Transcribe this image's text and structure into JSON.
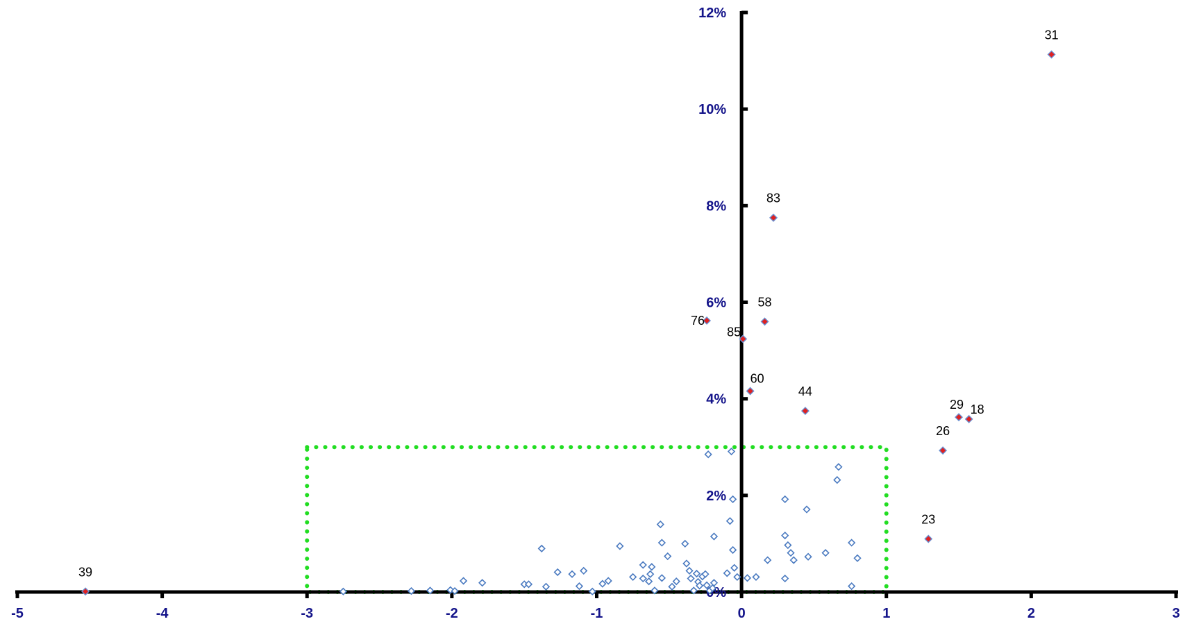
{
  "chart_data": {
    "type": "scatter",
    "title": "",
    "xlabel": "",
    "ylabel": "",
    "xlim": [
      -5,
      3
    ],
    "ylim": [
      0,
      0.12
    ],
    "grid": false,
    "legend": "none",
    "x_ticks": [
      {
        "value": -5,
        "label": "-5"
      },
      {
        "value": -4,
        "label": "-4"
      },
      {
        "value": -3,
        "label": "-3"
      },
      {
        "value": -2,
        "label": "-2"
      },
      {
        "value": -1,
        "label": "-1"
      },
      {
        "value": 0,
        "label": "0"
      },
      {
        "value": 1,
        "label": "1"
      },
      {
        "value": 2,
        "label": "2"
      },
      {
        "value": 3,
        "label": "3"
      }
    ],
    "y_ticks": [
      {
        "value": 0,
        "label": "0%"
      },
      {
        "value": 0.02,
        "label": "2%"
      },
      {
        "value": 0.04,
        "label": "4%"
      },
      {
        "value": 0.06,
        "label": "6%"
      },
      {
        "value": 0.08,
        "label": "8%"
      },
      {
        "value": 0.1,
        "label": "10%"
      },
      {
        "value": 0.12,
        "label": "12%"
      }
    ],
    "highlight_box": {
      "x": [
        -3,
        1
      ],
      "y": [
        0,
        0.03
      ],
      "color": "#22dd22"
    },
    "colors": {
      "axis": "#000000",
      "tick_text": "#14148a",
      "labeled_fill": "#e02020",
      "labeled_stroke": "#6a8fd0",
      "unlabeled_stroke": "#4a7ac0"
    },
    "labeled_points": [
      {
        "label": "31",
        "x": 2.14,
        "y": 0.1113
      },
      {
        "label": "83",
        "x": 0.22,
        "y": 0.0775
      },
      {
        "label": "58",
        "x": 0.16,
        "y": 0.056
      },
      {
        "label": "76",
        "x": -0.24,
        "y": 0.0562
      },
      {
        "label": "85",
        "x": 0.01,
        "y": 0.0524
      },
      {
        "label": "60",
        "x": 0.06,
        "y": 0.0416
      },
      {
        "label": "44",
        "x": 0.44,
        "y": 0.0375
      },
      {
        "label": "29",
        "x": 1.5,
        "y": 0.0362
      },
      {
        "label": "18",
        "x": 1.57,
        "y": 0.0358
      },
      {
        "label": "26",
        "x": 1.39,
        "y": 0.0293
      },
      {
        "label": "23",
        "x": 1.29,
        "y": 0.011
      },
      {
        "label": "39",
        "x": -4.53,
        "y": 0.0001
      }
    ],
    "points": [
      {
        "x": -2.75,
        "y": 0.0001
      },
      {
        "x": -2.28,
        "y": 0.0002
      },
      {
        "x": -2.15,
        "y": 0.0003
      },
      {
        "x": -2.01,
        "y": 0.0004
      },
      {
        "x": -1.98,
        "y": 0.0002
      },
      {
        "x": -1.92,
        "y": 0.0023
      },
      {
        "x": -1.79,
        "y": 0.0019
      },
      {
        "x": -1.5,
        "y": 0.0016
      },
      {
        "x": -1.47,
        "y": 0.0016
      },
      {
        "x": -1.38,
        "y": 0.009
      },
      {
        "x": -1.35,
        "y": 0.0011
      },
      {
        "x": -1.27,
        "y": 0.0041
      },
      {
        "x": -1.17,
        "y": 0.0037
      },
      {
        "x": -1.12,
        "y": 0.0012
      },
      {
        "x": -1.09,
        "y": 0.0044
      },
      {
        "x": -1.03,
        "y": 0.0001
      },
      {
        "x": -0.96,
        "y": 0.0017
      },
      {
        "x": -0.92,
        "y": 0.0023
      },
      {
        "x": -0.84,
        "y": 0.0095
      },
      {
        "x": -0.75,
        "y": 0.0031
      },
      {
        "x": -0.68,
        "y": 0.0056
      },
      {
        "x": -0.68,
        "y": 0.0028
      },
      {
        "x": -0.64,
        "y": 0.0022
      },
      {
        "x": -0.63,
        "y": 0.0037
      },
      {
        "x": -0.62,
        "y": 0.0052
      },
      {
        "x": -0.6,
        "y": 0.0003
      },
      {
        "x": -0.56,
        "y": 0.014
      },
      {
        "x": -0.55,
        "y": 0.0102
      },
      {
        "x": -0.55,
        "y": 0.0029
      },
      {
        "x": -0.51,
        "y": 0.0074
      },
      {
        "x": -0.48,
        "y": 0.0011
      },
      {
        "x": -0.45,
        "y": 0.0022
      },
      {
        "x": -0.39,
        "y": 0.01
      },
      {
        "x": -0.38,
        "y": 0.0059
      },
      {
        "x": -0.36,
        "y": 0.0044
      },
      {
        "x": -0.35,
        "y": 0.0028
      },
      {
        "x": -0.33,
        "y": 0.0003
      },
      {
        "x": -0.31,
        "y": 0.0038
      },
      {
        "x": -0.3,
        "y": 0.0021
      },
      {
        "x": -0.29,
        "y": 0.0013
      },
      {
        "x": -0.27,
        "y": 0.0032
      },
      {
        "x": -0.25,
        "y": 0.0037
      },
      {
        "x": -0.24,
        "y": 0.0014
      },
      {
        "x": -0.23,
        "y": 0.0285
      },
      {
        "x": -0.22,
        "y": 0.0003
      },
      {
        "x": -0.2,
        "y": 0.0008
      },
      {
        "x": -0.19,
        "y": 0.0019
      },
      {
        "x": -0.19,
        "y": 0.0115
      },
      {
        "x": -0.1,
        "y": 0.0039
      },
      {
        "x": -0.08,
        "y": 0.0147
      },
      {
        "x": -0.07,
        "y": 0.0291
      },
      {
        "x": -0.06,
        "y": 0.0192
      },
      {
        "x": -0.06,
        "y": 0.0087
      },
      {
        "x": -0.05,
        "y": 0.005
      },
      {
        "x": -0.03,
        "y": 0.0031
      },
      {
        "x": 0.04,
        "y": 0.0029
      },
      {
        "x": 0.1,
        "y": 0.0031
      },
      {
        "x": 0.3,
        "y": 0.0192
      },
      {
        "x": 0.3,
        "y": 0.0117
      },
      {
        "x": 0.32,
        "y": 0.0097
      },
      {
        "x": 0.34,
        "y": 0.0081
      },
      {
        "x": 0.36,
        "y": 0.0066
      },
      {
        "x": 0.3,
        "y": 0.0028
      },
      {
        "x": 0.18,
        "y": 0.0066
      },
      {
        "x": 0.45,
        "y": 0.0171
      },
      {
        "x": 0.46,
        "y": 0.0073
      },
      {
        "x": 0.66,
        "y": 0.0232
      },
      {
        "x": 0.67,
        "y": 0.0259
      },
      {
        "x": 0.58,
        "y": 0.0081
      },
      {
        "x": 0.76,
        "y": 0.0102
      },
      {
        "x": 0.76,
        "y": 0.0012
      },
      {
        "x": 0.8,
        "y": 0.007
      }
    ]
  }
}
